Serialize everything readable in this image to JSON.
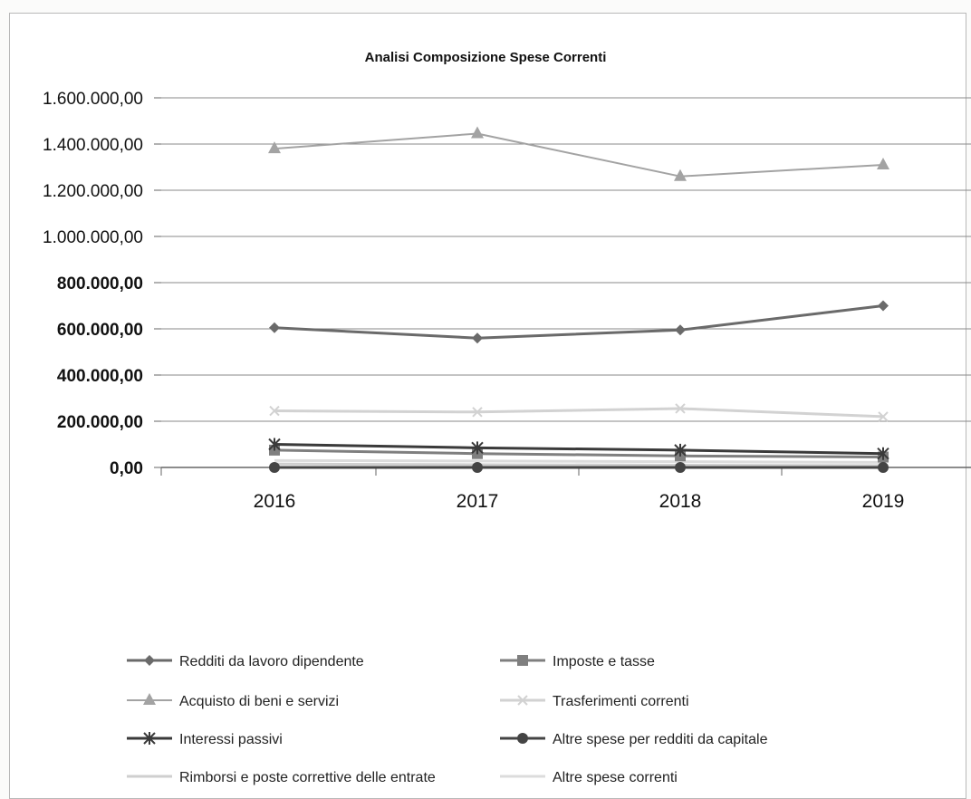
{
  "chart_data": {
    "type": "line",
    "title": "Analisi Composizione Spese Correnti",
    "categories": [
      "2016",
      "2017",
      "2018",
      "2019"
    ],
    "ylim": [
      0,
      1600000
    ],
    "yticks": [
      "0,00",
      "200.000,00",
      "400.000,00",
      "600.000,00",
      "800.000,00",
      "1.000.000,00",
      "1.200.000,00",
      "1.400.000,00",
      "1.600.000,00"
    ],
    "grid": true,
    "legend_position": "bottom",
    "series": [
      {
        "name": "Redditi da lavoro dipendente",
        "values": [
          605000,
          560000,
          595000,
          700000
        ],
        "color": "#6a6a6a",
        "marker": "diamond",
        "width": 3
      },
      {
        "name": "Imposte e tasse",
        "values": [
          75000,
          60000,
          50000,
          45000
        ],
        "color": "#7f7f7f",
        "marker": "square",
        "width": 3
      },
      {
        "name": "Acquisto di beni e servizi",
        "values": [
          1380000,
          1445000,
          1260000,
          1310000
        ],
        "color": "#a3a3a3",
        "marker": "triangle",
        "width": 2
      },
      {
        "name": "Trasferimenti correnti",
        "values": [
          245000,
          240000,
          255000,
          220000
        ],
        "color": "#d2d2d2",
        "marker": "x",
        "width": 3
      },
      {
        "name": "Interessi passivi",
        "values": [
          100000,
          85000,
          75000,
          60000
        ],
        "color": "#3a3a3a",
        "marker": "star",
        "width": 3
      },
      {
        "name": "Altre spese per redditi da capitale",
        "values": [
          0,
          0,
          0,
          0
        ],
        "color": "#444444",
        "marker": "circle",
        "width": 3
      },
      {
        "name": "Rimborsi e poste correttive delle entrate",
        "values": [
          15000,
          12000,
          10000,
          8000
        ],
        "color": "#cfcfcf",
        "marker": "none",
        "width": 3
      },
      {
        "name": "Altre spese correnti",
        "values": [
          30000,
          28000,
          25000,
          22000
        ],
        "color": "#dcdcdc",
        "marker": "none",
        "width": 3
      }
    ]
  }
}
